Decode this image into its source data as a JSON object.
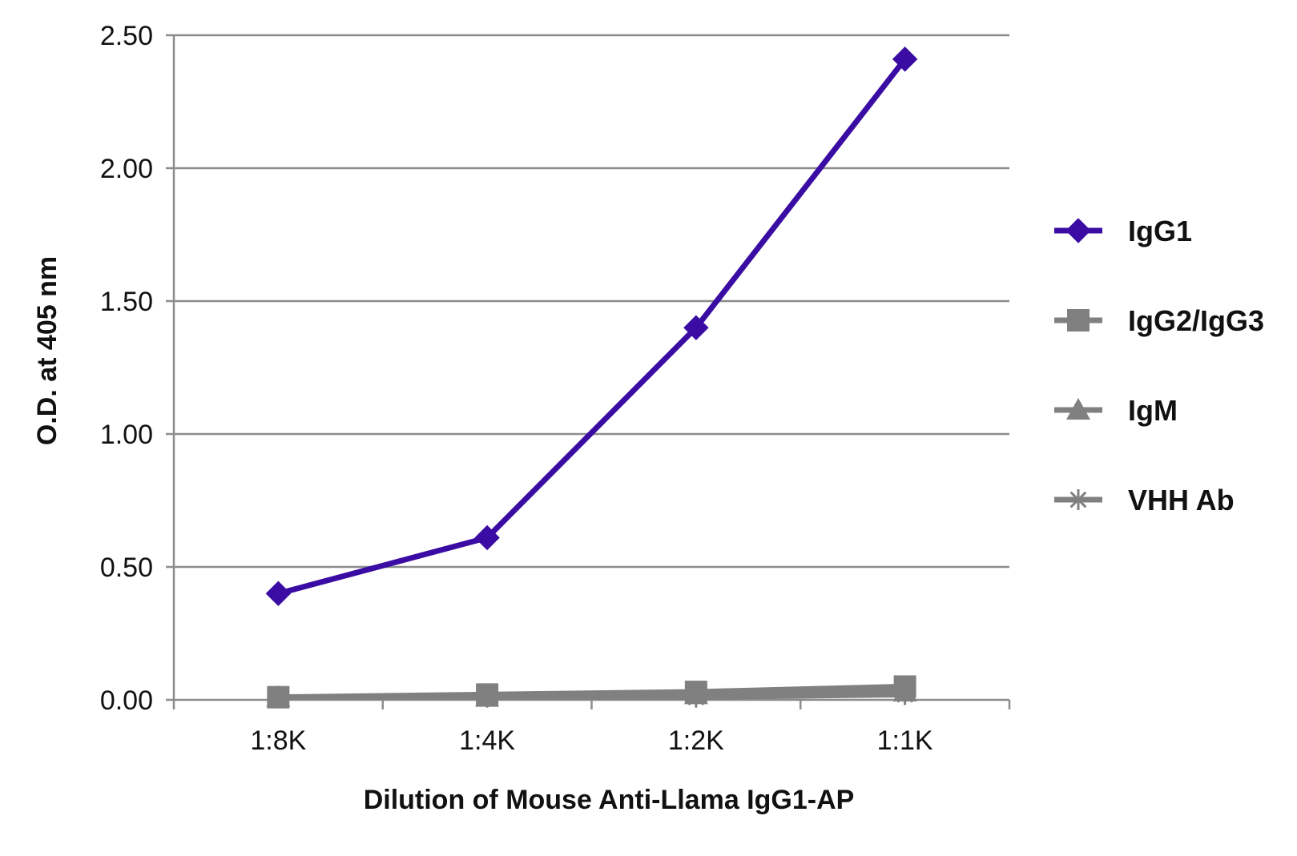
{
  "chart_data": {
    "type": "line",
    "title": "",
    "xlabel": "Dilution of Mouse Anti-Llama IgG1-AP",
    "ylabel": "O.D. at 405 nm",
    "categories": [
      "1:8K",
      "1:4K",
      "1:2K",
      "1:1K"
    ],
    "ylim": [
      0,
      2.5
    ],
    "yticks": [
      "0.00",
      "0.50",
      "1.00",
      "1.50",
      "2.00",
      "2.50"
    ],
    "grid": true,
    "legend_position": "right",
    "series": [
      {
        "name": "IgG1",
        "values": [
          0.4,
          0.61,
          1.4,
          2.41
        ],
        "color": "#3a0ca3",
        "marker": "diamond"
      },
      {
        "name": "IgG2/IgG3",
        "values": [
          0.01,
          0.02,
          0.03,
          0.05
        ],
        "color": "#808080",
        "marker": "square"
      },
      {
        "name": "IgM",
        "values": [
          0.01,
          0.01,
          0.02,
          0.03
        ],
        "color": "#808080",
        "marker": "triangle"
      },
      {
        "name": "VHH Ab",
        "values": [
          0.01,
          0.01,
          0.01,
          0.02
        ],
        "color": "#808080",
        "marker": "asterisk"
      }
    ]
  }
}
